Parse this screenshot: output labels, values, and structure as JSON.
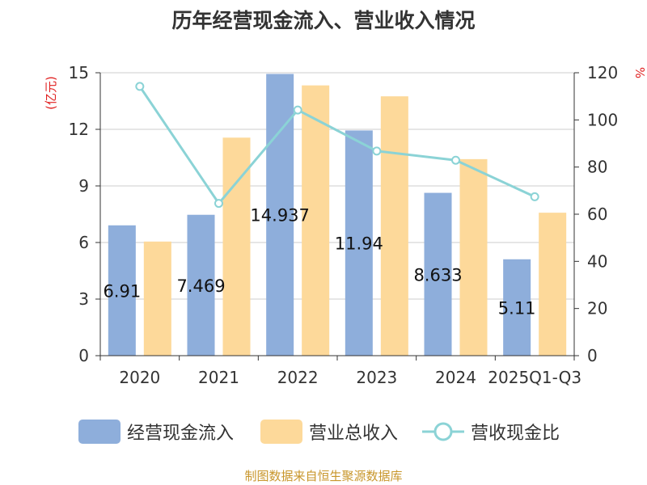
{
  "title": "历年经营现金流入、营业收入情况",
  "source": "制图数据来自恒生聚源数据库",
  "chart_data": {
    "type": "bar",
    "categories": [
      "2020",
      "2021",
      "2022",
      "2023",
      "2024",
      "2025Q1-Q3"
    ],
    "y_left": {
      "label": "(亿元)",
      "ylim": [
        0,
        15
      ],
      "ticks": [
        0,
        3,
        6,
        9,
        12,
        15
      ]
    },
    "y_right": {
      "label": "%",
      "ylim": [
        0,
        120
      ],
      "ticks": [
        0,
        20,
        40,
        60,
        80,
        100,
        120
      ]
    },
    "grid": true,
    "legend_position": "bottom",
    "series": [
      {
        "name": "经营现金流入",
        "kind": "bar",
        "axis": "left",
        "color": "#8eaedb",
        "values": [
          6.91,
          7.469,
          14.937,
          11.94,
          8.633,
          5.11
        ],
        "data_labels": [
          "6.91",
          "7.469",
          "14.937",
          "11.94",
          "8.633",
          "5.11"
        ]
      },
      {
        "name": "营业总收入",
        "kind": "bar",
        "axis": "left",
        "color": "#fdd99a",
        "values": [
          6.05,
          11.56,
          14.33,
          13.75,
          10.42,
          7.58
        ]
      },
      {
        "name": "营收现金比",
        "kind": "line",
        "axis": "right",
        "color": "#8bd3d6",
        "values": [
          114.2,
          64.6,
          104.2,
          86.8,
          82.9,
          67.4
        ]
      }
    ]
  }
}
